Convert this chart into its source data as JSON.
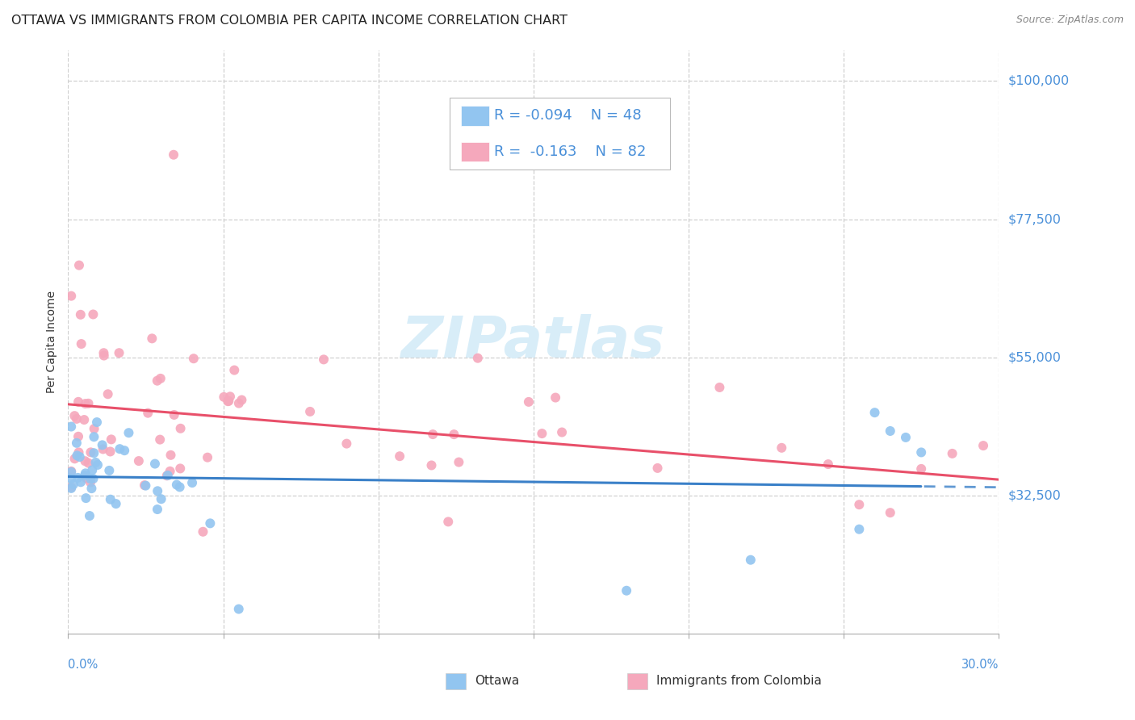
{
  "title": "OTTAWA VS IMMIGRANTS FROM COLOMBIA PER CAPITA INCOME CORRELATION CHART",
  "source": "Source: ZipAtlas.com",
  "ylabel": "Per Capita Income",
  "color_ottawa": "#92c5f0",
  "color_colombia": "#f5a8bc",
  "color_trendline_ottawa": "#3a80c8",
  "color_trendline_colombia": "#e8506a",
  "color_axis_labels": "#4a90d9",
  "watermark_color": "#d8edf8",
  "background_color": "#ffffff",
  "grid_color": "#d0d0d0",
  "xmin": 0.0,
  "xmax": 0.3,
  "ymin": 10000,
  "ymax": 105000,
  "ytick_vals": [
    32500,
    55000,
    77500,
    100000
  ],
  "ytick_labels": [
    "$32,500",
    "$55,000",
    "$77,500",
    "$100,000"
  ],
  "legend_text_r1": "R = -0.094",
  "legend_text_n1": "N = 48",
  "legend_text_r2": "R =  -0.163",
  "legend_text_n2": "N = 82",
  "title_fontsize": 11.5,
  "source_fontsize": 9,
  "watermark_fontsize": 52,
  "legend_fontsize": 13,
  "axis_fontsize": 10,
  "ylabel_fontsize": 10
}
